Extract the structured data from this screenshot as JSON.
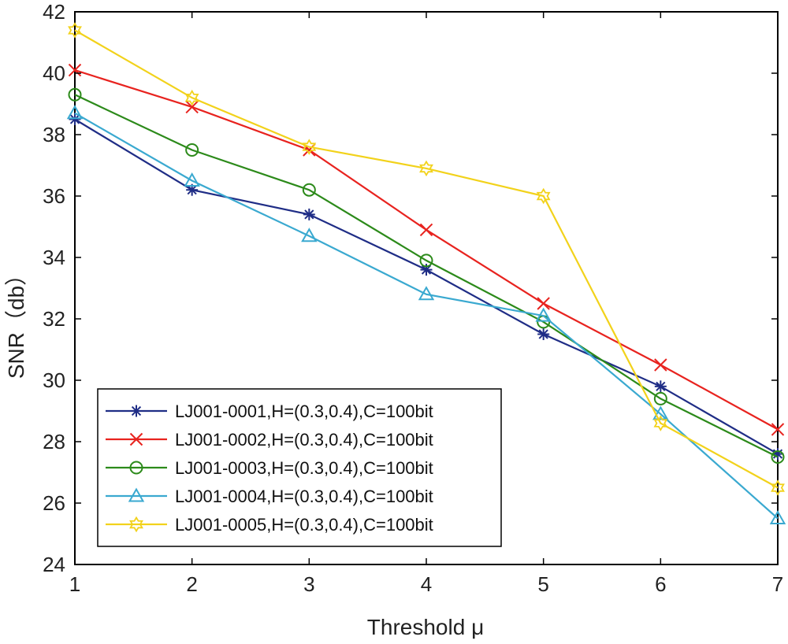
{
  "chart_data": {
    "type": "line",
    "title": "",
    "xlabel": "Threshold μ",
    "ylabel": "SNR（db）",
    "x": [
      1,
      2,
      3,
      4,
      5,
      6,
      7
    ],
    "xlim": [
      1,
      7
    ],
    "ylim": [
      24,
      42
    ],
    "xticks": [
      "1",
      "2",
      "3",
      "4",
      "5",
      "6",
      "7"
    ],
    "yticks": [
      "24",
      "26",
      "28",
      "30",
      "32",
      "34",
      "36",
      "38",
      "40",
      "42"
    ],
    "grid": false,
    "legend_position": "bottom-left",
    "series": [
      {
        "name": "LJ001-0001,H=(0.3,0.4),C=100bit",
        "color": "#1f2d86",
        "marker": "asterisk",
        "values": [
          38.5,
          36.2,
          35.4,
          33.6,
          31.5,
          29.8,
          27.6
        ]
      },
      {
        "name": "LJ001-0002,H=(0.3,0.4),C=100bit",
        "color": "#e8231f",
        "marker": "x",
        "values": [
          40.1,
          38.9,
          37.5,
          34.9,
          32.5,
          30.5,
          28.4
        ]
      },
      {
        "name": "LJ001-0003,H=(0.3,0.4),C=100bit",
        "color": "#2c8a1a",
        "marker": "circle",
        "values": [
          39.3,
          37.5,
          36.2,
          33.9,
          31.9,
          29.4,
          27.5
        ]
      },
      {
        "name": "LJ001-0004,H=(0.3,0.4),C=100bit",
        "color": "#3aa9d0",
        "marker": "triangle",
        "values": [
          38.7,
          36.5,
          34.7,
          32.8,
          32.1,
          28.9,
          25.5
        ]
      },
      {
        "name": "LJ001-0005,H=(0.3,0.4),C=100bit",
        "color": "#f2d21b",
        "marker": "hexagram",
        "values": [
          41.4,
          39.2,
          37.6,
          36.9,
          36.0,
          28.6,
          26.5
        ]
      }
    ]
  }
}
